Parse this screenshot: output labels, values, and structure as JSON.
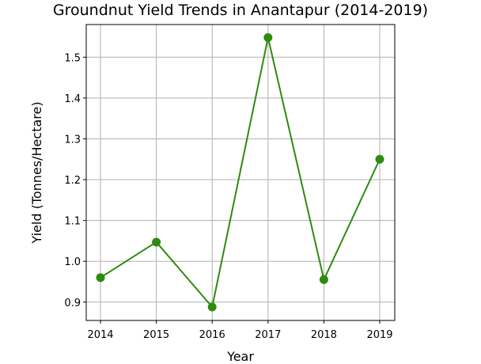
{
  "chart_data": {
    "type": "line",
    "title": "Groundnut Yield Trends in Anantapur (2014-2019)",
    "xlabel": "Year",
    "ylabel": "Yield (Tonnes/Hectare)",
    "categories": [
      "2014",
      "2015",
      "2016",
      "2017",
      "2018",
      "2019"
    ],
    "series": [
      {
        "values": [
          0.96,
          1.047,
          0.888,
          1.548,
          0.955,
          1.25
        ]
      }
    ],
    "yticks": [
      "0.9",
      "1.0",
      "1.1",
      "1.2",
      "1.3",
      "1.4",
      "1.5"
    ],
    "ylim": [
      0.855,
      1.58
    ],
    "grid": true,
    "marker": "circle",
    "line_color": "#2e8b0f"
  }
}
